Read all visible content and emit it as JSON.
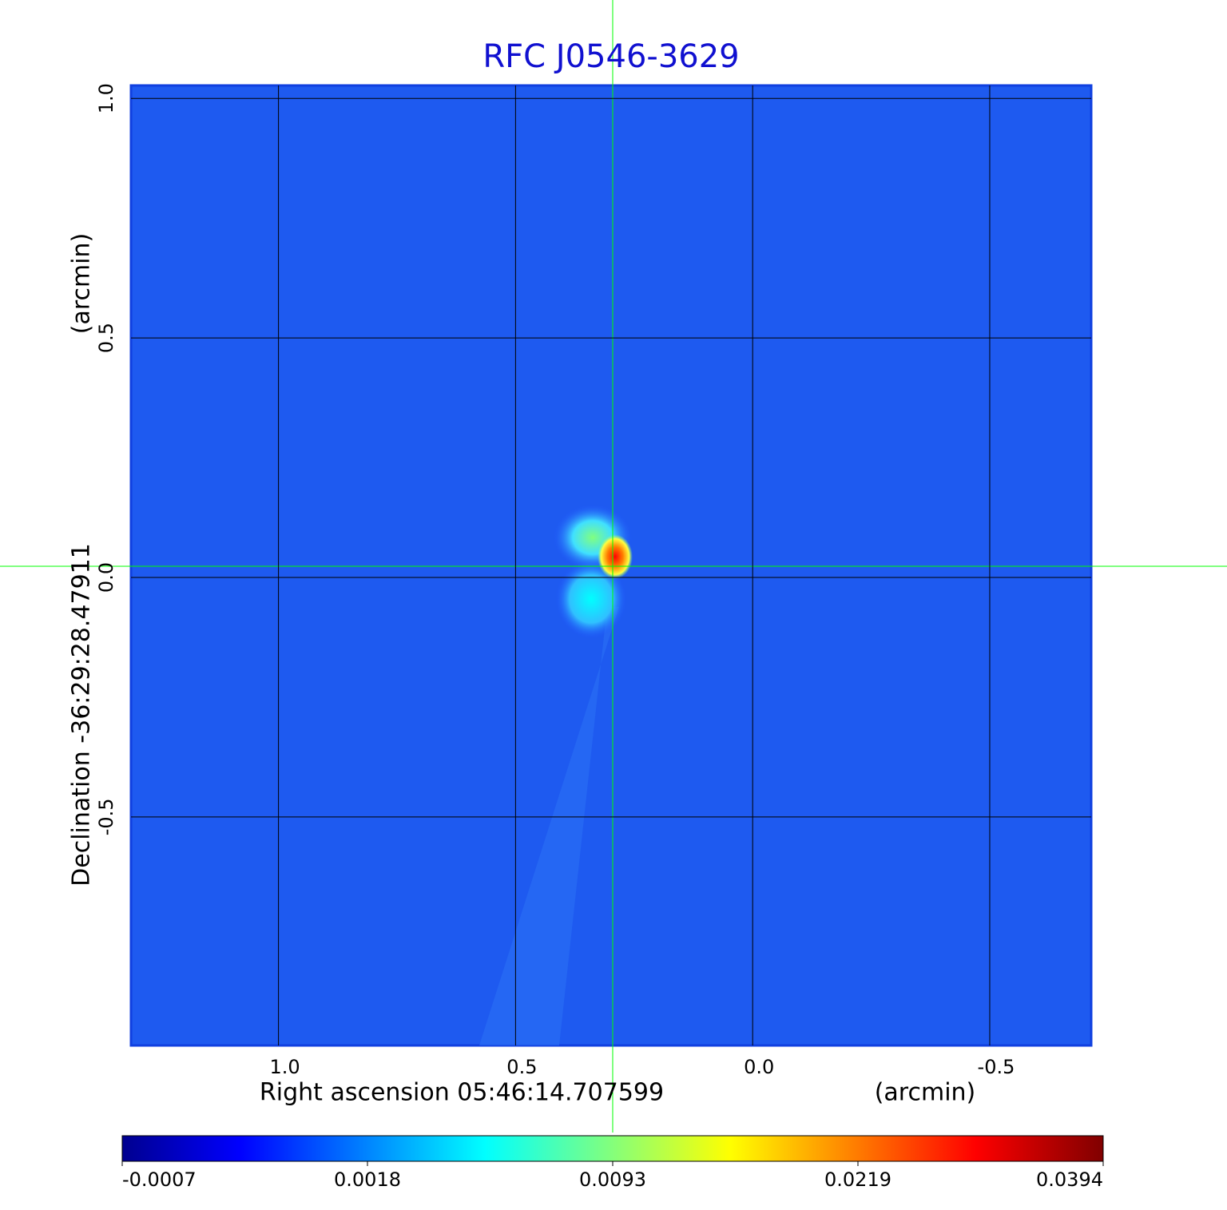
{
  "chart_data": {
    "type": "image",
    "title": "RFC J0546-3629",
    "xlabel": "Right ascension  05:46:14.707599",
    "xunit": "(arcmin)",
    "ylabel": "Declination  -36:29:28.47911",
    "yunit": "(arcmin)",
    "xlim": [
      1.311,
      -0.714
    ],
    "ylim": [
      -0.977,
      1.027
    ],
    "xticks": [
      {
        "value": 1,
        "label": "1.0"
      },
      0.5,
      {
        "value": 0,
        "label": "0.0"
      },
      -0.5
    ],
    "yticks": [
      -0.5,
      {
        "value": 0,
        "label": "0.0"
      },
      0.5,
      {
        "value": 1,
        "label": "1.0"
      }
    ],
    "grid": true,
    "colormap": "jet",
    "colorbar": {
      "ticks": [
        -0.0007,
        0.0018,
        0.0093,
        0.0219,
        0.0394
      ]
    }
  }
}
